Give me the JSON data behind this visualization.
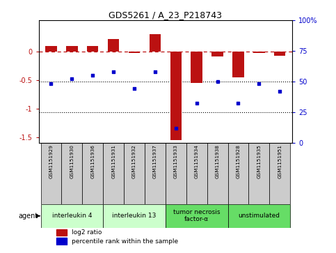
{
  "title": "GDS5261 / A_23_P218743",
  "samples": [
    "GSM1151929",
    "GSM1151930",
    "GSM1151936",
    "GSM1151931",
    "GSM1151932",
    "GSM1151937",
    "GSM1151933",
    "GSM1151934",
    "GSM1151938",
    "GSM1151928",
    "GSM1151935",
    "GSM1151951"
  ],
  "log2_ratio": [
    0.1,
    0.1,
    0.1,
    0.22,
    -0.02,
    0.3,
    -1.55,
    -0.55,
    -0.08,
    -0.45,
    -0.02,
    -0.07
  ],
  "percentile_rank": [
    48,
    52,
    55,
    58,
    44,
    58,
    12,
    32,
    50,
    32,
    48,
    42
  ],
  "groups": [
    {
      "label": "interleukin 4",
      "start": 0,
      "end": 2,
      "color": "#ccffcc"
    },
    {
      "label": "interleukin 13",
      "start": 3,
      "end": 5,
      "color": "#ccffcc"
    },
    {
      "label": "tumor necrosis\nfactor-α",
      "start": 6,
      "end": 8,
      "color": "#66dd66"
    },
    {
      "label": "unstimulated",
      "start": 9,
      "end": 11,
      "color": "#66dd66"
    }
  ],
  "bar_color": "#bb1111",
  "dot_color": "#0000cc",
  "ylim_left": [
    -1.6,
    0.55
  ],
  "ylim_right": [
    0,
    100
  ],
  "background_color": "#ffffff",
  "sample_box_color": "#cccccc"
}
